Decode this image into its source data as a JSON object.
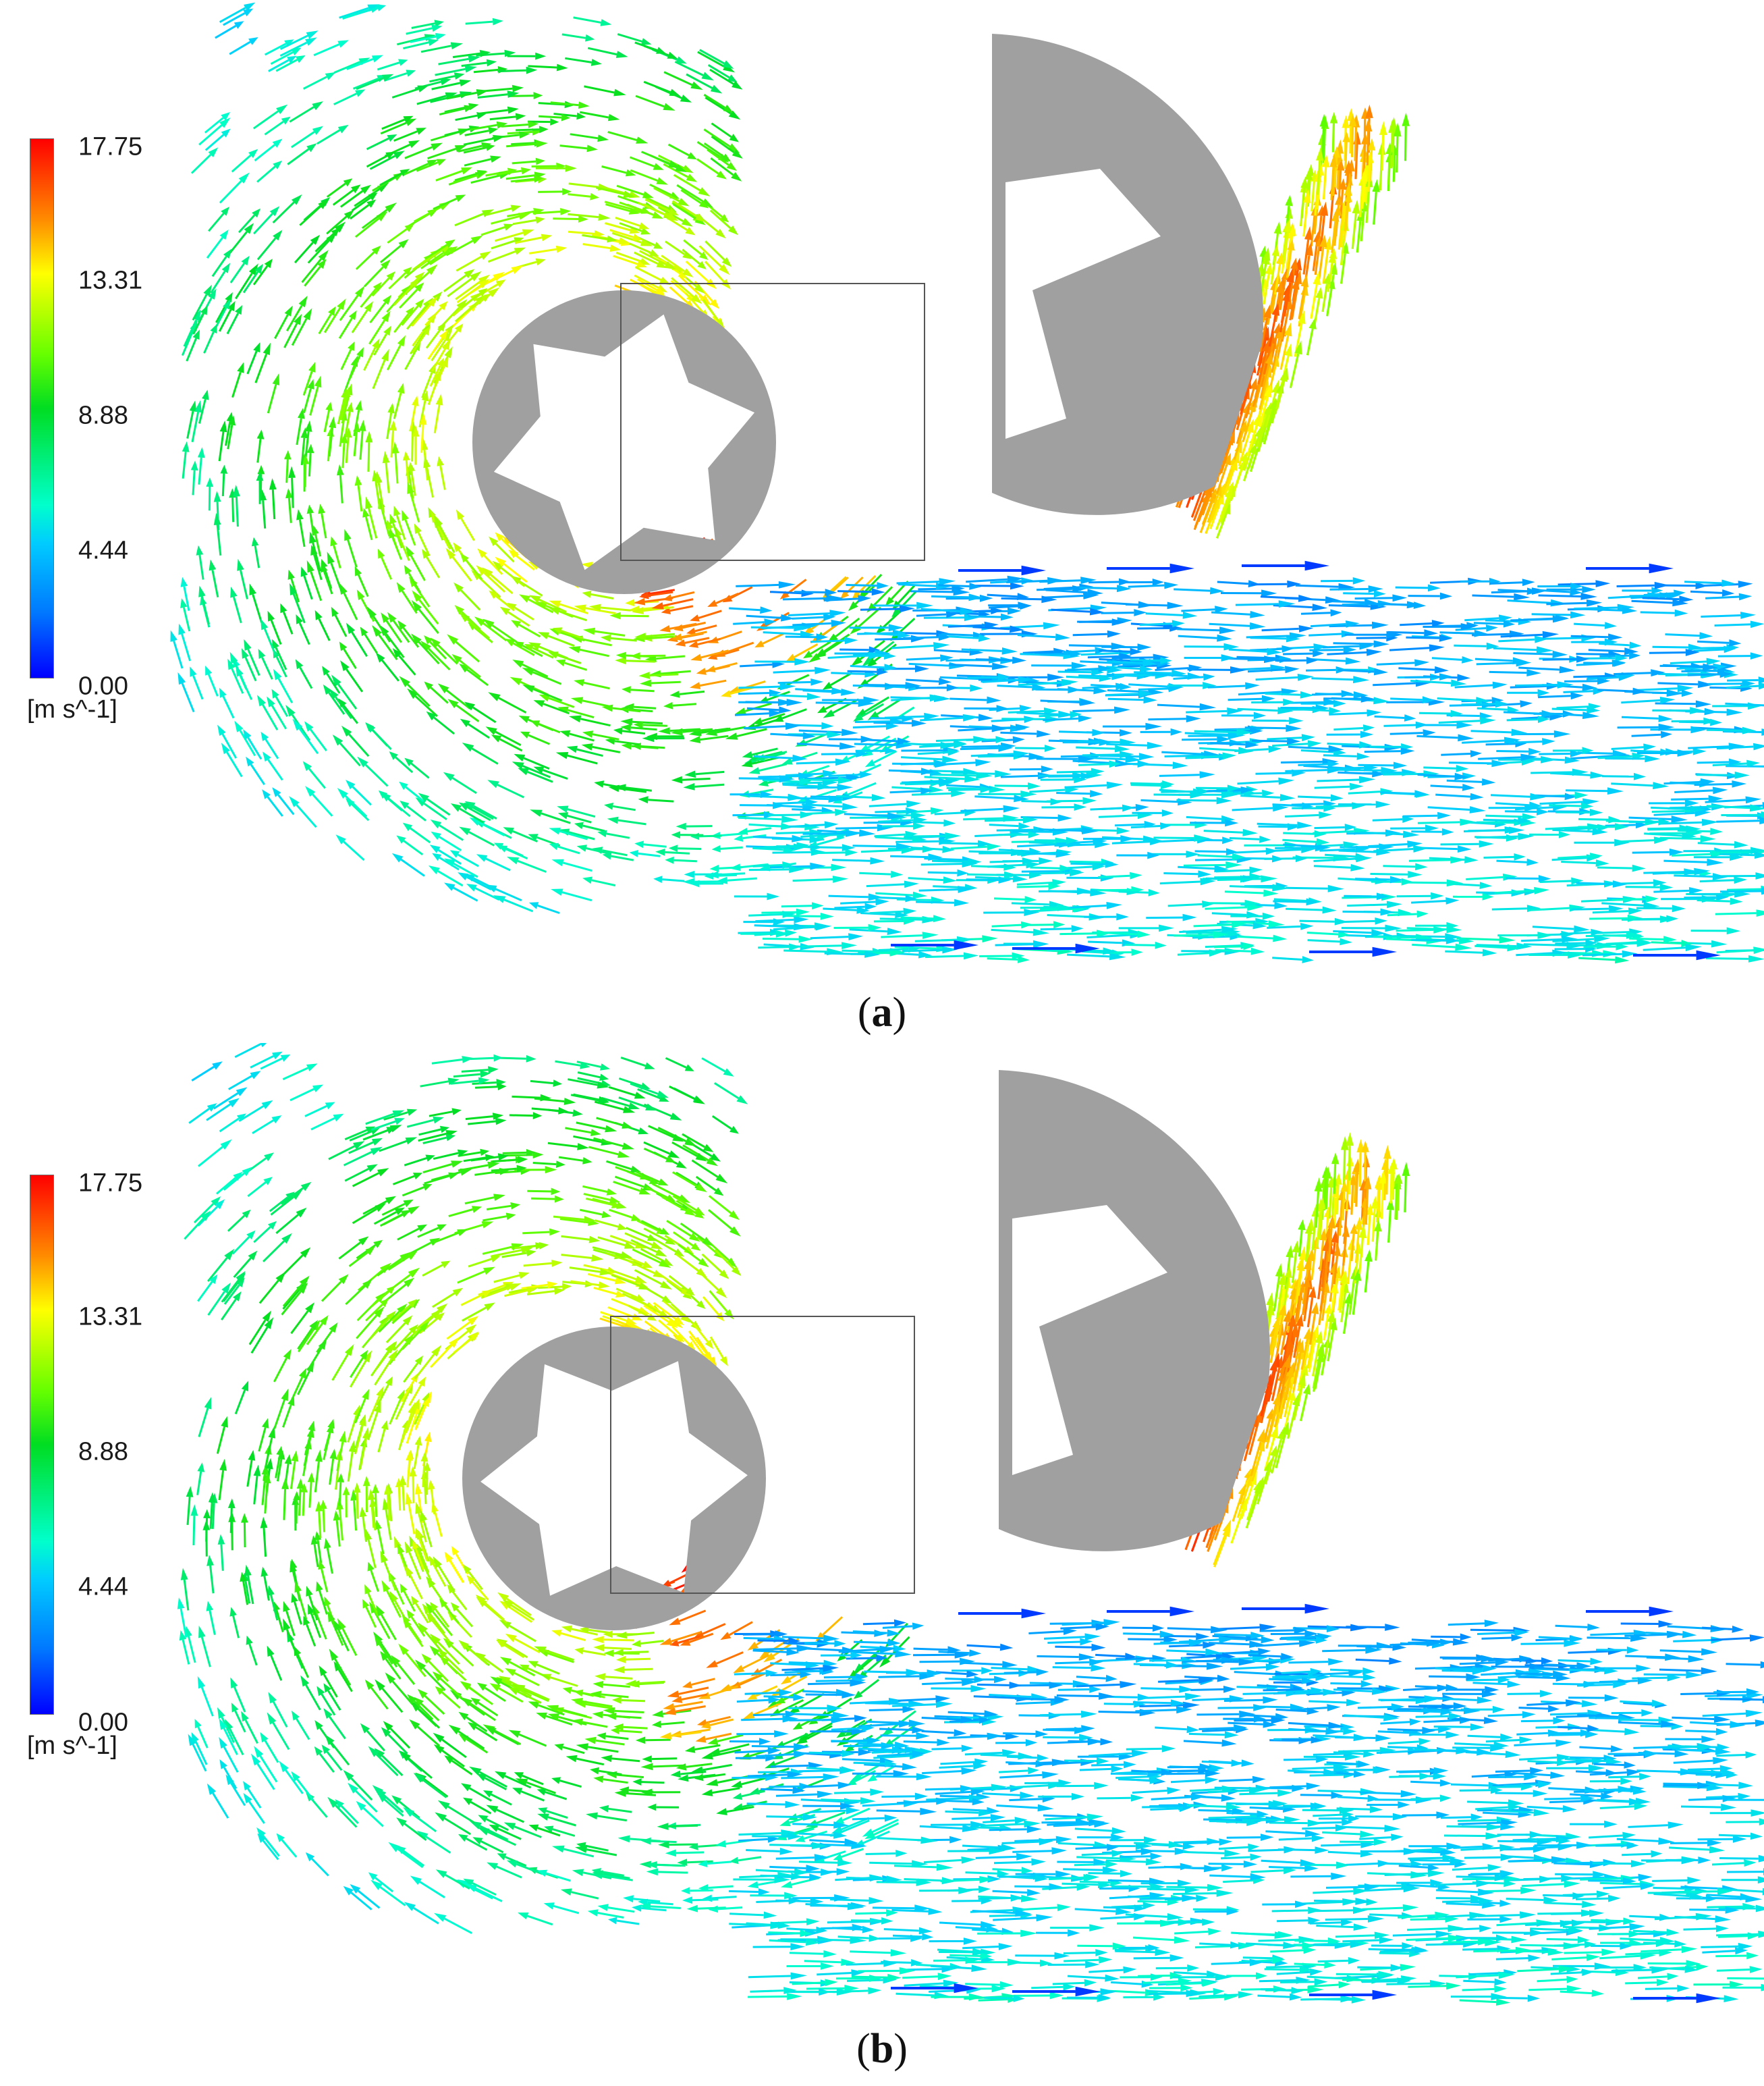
{
  "figure": {
    "panels": [
      {
        "id": "a",
        "caption_open": "(",
        "caption_letter": "a",
        "caption_close": ")",
        "legend": {
          "ticks": [
            "17.75",
            "13.31",
            "8.88",
            "4.44",
            "0.00"
          ],
          "unit": "[m s^-1]"
        }
      },
      {
        "id": "b",
        "caption_open": "(",
        "caption_letter": "b",
        "caption_close": ")",
        "legend": {
          "ticks": [
            "17.75",
            "13.31",
            "8.88",
            "4.44",
            "0.00"
          ],
          "unit": "[m s^-1]"
        }
      }
    ],
    "colormap": [
      "#0000ff",
      "#0077ff",
      "#00ccff",
      "#00ffcc",
      "#00dd22",
      "#66ff00",
      "#ffff00",
      "#ff8c00",
      "#ff0000"
    ],
    "impeller_color": "#a0a0a0",
    "velocity_range": [
      0.0,
      17.75
    ]
  }
}
